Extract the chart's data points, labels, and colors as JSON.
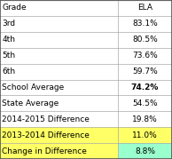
{
  "rows": [
    {
      "label": "Grade",
      "value": "ELA",
      "bg_label": "#ffffff",
      "bg_value": "#ffffff",
      "bold_value": false
    },
    {
      "label": "3rd",
      "value": "83.1%",
      "bg_label": "#ffffff",
      "bg_value": "#ffffff",
      "bold_value": false
    },
    {
      "label": "4th",
      "value": "80.5%",
      "bg_label": "#ffffff",
      "bg_value": "#ffffff",
      "bold_value": false
    },
    {
      "label": "5th",
      "value": "73.6%",
      "bg_label": "#ffffff",
      "bg_value": "#ffffff",
      "bold_value": false
    },
    {
      "label": "6th",
      "value": "59.7%",
      "bg_label": "#ffffff",
      "bg_value": "#ffffff",
      "bold_value": false
    },
    {
      "label": "School Average",
      "value": "74.2%",
      "bg_label": "#ffffff",
      "bg_value": "#ffffff",
      "bold_value": true
    },
    {
      "label": "State Average",
      "value": "54.5%",
      "bg_label": "#ffffff",
      "bg_value": "#ffffff",
      "bold_value": false
    },
    {
      "label": "2014-2015 Difference",
      "value": "19.8%",
      "bg_label": "#ffffff",
      "bg_value": "#ffffff",
      "bold_value": false
    },
    {
      "label": "2013-2014 Difference",
      "value": "11.0%",
      "bg_label": "#ffff66",
      "bg_value": "#ffff66",
      "bold_value": false
    },
    {
      "label": "Change in Difference",
      "value": "8.8%",
      "bg_label": "#ffff66",
      "bg_value": "#99ffcc",
      "bold_value": false
    }
  ],
  "col_split": 0.685,
  "figsize": [
    1.94,
    1.79
  ],
  "dpi": 100,
  "font_size": 6.5,
  "border_color": "#aaaaaa",
  "text_color": "#000000"
}
